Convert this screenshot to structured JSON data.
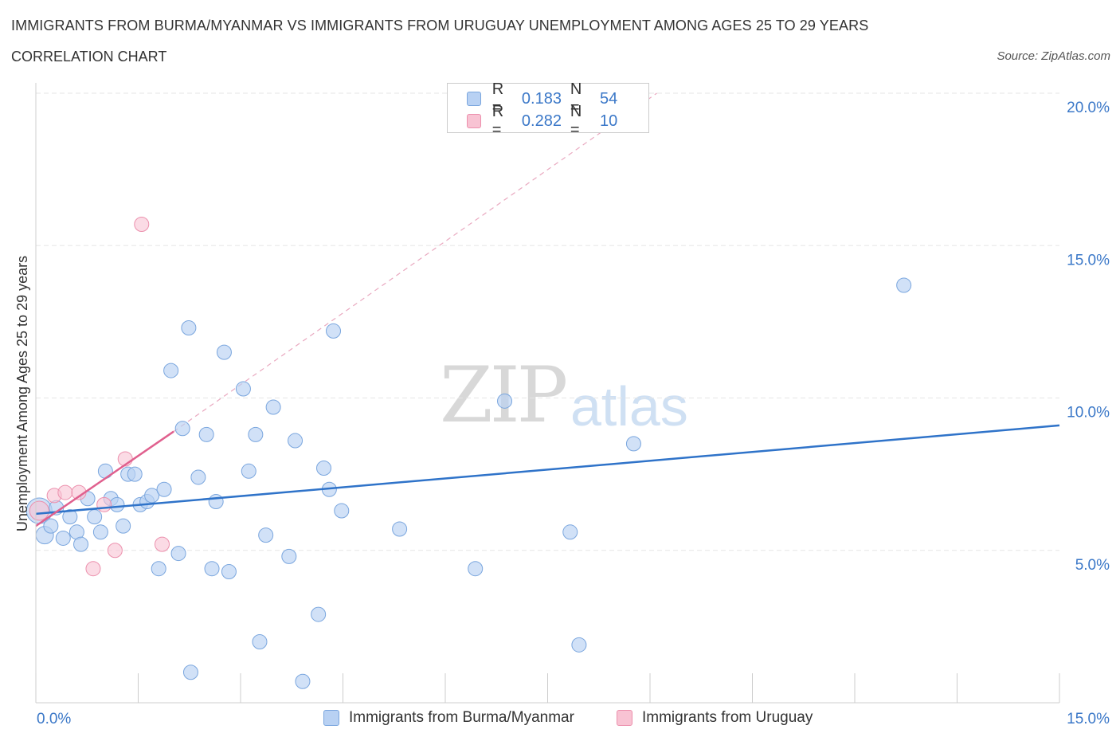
{
  "title": "IMMIGRANTS FROM BURMA/MYANMAR VS IMMIGRANTS FROM URUGUAY UNEMPLOYMENT AMONG AGES 25 TO 29 YEARS",
  "subtitle": "CORRELATION CHART",
  "source": "Source: ZipAtlas.com",
  "watermark": {
    "zip": "ZIP",
    "atlas": "atlas"
  },
  "legend": {
    "r_label": "R =",
    "n_label": "N =",
    "series": [
      {
        "r": "0.183",
        "n": "54"
      },
      {
        "r": "0.282",
        "n": "10"
      }
    ]
  },
  "colors": {
    "blue_fill": "#b8d1f3",
    "blue_stroke": "#7aa6de",
    "blue_line": "#2f73c9",
    "pink_fill": "#f8c3d3",
    "pink_stroke": "#ec90ad",
    "pink_line": "#e0608e",
    "tick_text": "#3b78c8",
    "grid": "#e6e6e6"
  },
  "chart_data": {
    "type": "scatter",
    "title": "IMMIGRANTS FROM BURMA/MYANMAR VS IMMIGRANTS FROM URUGUAY UNEMPLOYMENT AMONG AGES 25 TO 29 YEARS",
    "xlabel": "",
    "ylabel": "Unemployment Among Ages 25 to 29 years",
    "xlim": [
      0,
      15
    ],
    "ylim": [
      0,
      20
    ],
    "x_tick_labels": [
      {
        "value": 0,
        "label": "0.0%"
      },
      {
        "value": 15,
        "label": "15.0%"
      }
    ],
    "y_tick_labels": [
      {
        "value": 5,
        "label": "5.0%"
      },
      {
        "value": 10,
        "label": "10.0%"
      },
      {
        "value": 15,
        "label": "15.0%"
      },
      {
        "value": 20,
        "label": "20.0%"
      }
    ],
    "grid": true,
    "series": [
      {
        "name": "Immigrants from Burma/Myanmar",
        "color": "#b8d1f3",
        "trend": {
          "x": [
            0,
            15
          ],
          "y": [
            6.2,
            9.1
          ],
          "style": "solid"
        },
        "points": [
          {
            "x": 0.05,
            "y": 6.3,
            "s": 16
          },
          {
            "x": 0.13,
            "y": 5.5,
            "s": 11
          },
          {
            "x": 0.22,
            "y": 5.8,
            "s": 9
          },
          {
            "x": 0.3,
            "y": 6.4,
            "s": 9
          },
          {
            "x": 0.4,
            "y": 5.4,
            "s": 9
          },
          {
            "x": 0.5,
            "y": 6.1,
            "s": 9
          },
          {
            "x": 0.6,
            "y": 5.6,
            "s": 9
          },
          {
            "x": 0.66,
            "y": 5.2,
            "s": 9
          },
          {
            "x": 0.76,
            "y": 6.7,
            "s": 9
          },
          {
            "x": 0.86,
            "y": 6.1,
            "s": 9
          },
          {
            "x": 0.95,
            "y": 5.6,
            "s": 9
          },
          {
            "x": 1.02,
            "y": 7.6,
            "s": 9
          },
          {
            "x": 1.1,
            "y": 6.7,
            "s": 9
          },
          {
            "x": 1.19,
            "y": 6.5,
            "s": 9
          },
          {
            "x": 1.28,
            "y": 5.8,
            "s": 9
          },
          {
            "x": 1.35,
            "y": 7.5,
            "s": 9
          },
          {
            "x": 1.45,
            "y": 7.5,
            "s": 9
          },
          {
            "x": 1.53,
            "y": 6.5,
            "s": 9
          },
          {
            "x": 1.63,
            "y": 6.6,
            "s": 9
          },
          {
            "x": 1.7,
            "y": 6.8,
            "s": 9
          },
          {
            "x": 1.8,
            "y": 4.4,
            "s": 9
          },
          {
            "x": 1.88,
            "y": 7.0,
            "s": 9
          },
          {
            "x": 1.98,
            "y": 10.9,
            "s": 9
          },
          {
            "x": 2.09,
            "y": 4.9,
            "s": 9
          },
          {
            "x": 2.15,
            "y": 9.0,
            "s": 9
          },
          {
            "x": 2.24,
            "y": 12.3,
            "s": 9
          },
          {
            "x": 2.27,
            "y": 1.0,
            "s": 9
          },
          {
            "x": 2.38,
            "y": 7.4,
            "s": 9
          },
          {
            "x": 2.5,
            "y": 8.8,
            "s": 9
          },
          {
            "x": 2.58,
            "y": 4.4,
            "s": 9
          },
          {
            "x": 2.64,
            "y": 6.6,
            "s": 9
          },
          {
            "x": 2.76,
            "y": 11.5,
            "s": 9
          },
          {
            "x": 2.83,
            "y": 4.3,
            "s": 9
          },
          {
            "x": 3.04,
            "y": 10.3,
            "s": 9
          },
          {
            "x": 3.12,
            "y": 7.6,
            "s": 9
          },
          {
            "x": 3.22,
            "y": 8.8,
            "s": 9
          },
          {
            "x": 3.28,
            "y": 2.0,
            "s": 9
          },
          {
            "x": 3.37,
            "y": 5.5,
            "s": 9
          },
          {
            "x": 3.48,
            "y": 9.7,
            "s": 9
          },
          {
            "x": 3.71,
            "y": 4.8,
            "s": 9
          },
          {
            "x": 3.8,
            "y": 8.6,
            "s": 9
          },
          {
            "x": 3.91,
            "y": 0.7,
            "s": 9
          },
          {
            "x": 4.14,
            "y": 2.9,
            "s": 9
          },
          {
            "x": 4.22,
            "y": 7.7,
            "s": 9
          },
          {
            "x": 4.3,
            "y": 7.0,
            "s": 9
          },
          {
            "x": 4.36,
            "y": 12.2,
            "s": 9
          },
          {
            "x": 4.48,
            "y": 6.3,
            "s": 9
          },
          {
            "x": 5.33,
            "y": 5.7,
            "s": 9
          },
          {
            "x": 6.44,
            "y": 4.4,
            "s": 9
          },
          {
            "x": 6.87,
            "y": 9.9,
            "s": 9
          },
          {
            "x": 7.83,
            "y": 5.6,
            "s": 9
          },
          {
            "x": 7.96,
            "y": 1.9,
            "s": 9
          },
          {
            "x": 8.76,
            "y": 8.5,
            "s": 9
          },
          {
            "x": 12.72,
            "y": 13.7,
            "s": 9
          }
        ]
      },
      {
        "name": "Immigrants from Uruguay",
        "color": "#f8c3d3",
        "trend": {
          "x": [
            0,
            2.02
          ],
          "y": [
            5.8,
            8.9
          ],
          "style": "solid"
        },
        "trend_extended": {
          "x": [
            2.02,
            9.1
          ],
          "y": [
            8.9,
            20.0
          ],
          "style": "dashed"
        },
        "points": [
          {
            "x": 0.05,
            "y": 6.3,
            "s": 12
          },
          {
            "x": 0.27,
            "y": 6.8,
            "s": 9
          },
          {
            "x": 0.43,
            "y": 6.9,
            "s": 9
          },
          {
            "x": 0.63,
            "y": 6.9,
            "s": 9
          },
          {
            "x": 0.84,
            "y": 4.4,
            "s": 9
          },
          {
            "x": 1.0,
            "y": 6.5,
            "s": 9
          },
          {
            "x": 1.16,
            "y": 5.0,
            "s": 9
          },
          {
            "x": 1.31,
            "y": 8.0,
            "s": 9
          },
          {
            "x": 1.55,
            "y": 15.7,
            "s": 9
          },
          {
            "x": 1.85,
            "y": 5.2,
            "s": 9
          }
        ]
      }
    ]
  }
}
